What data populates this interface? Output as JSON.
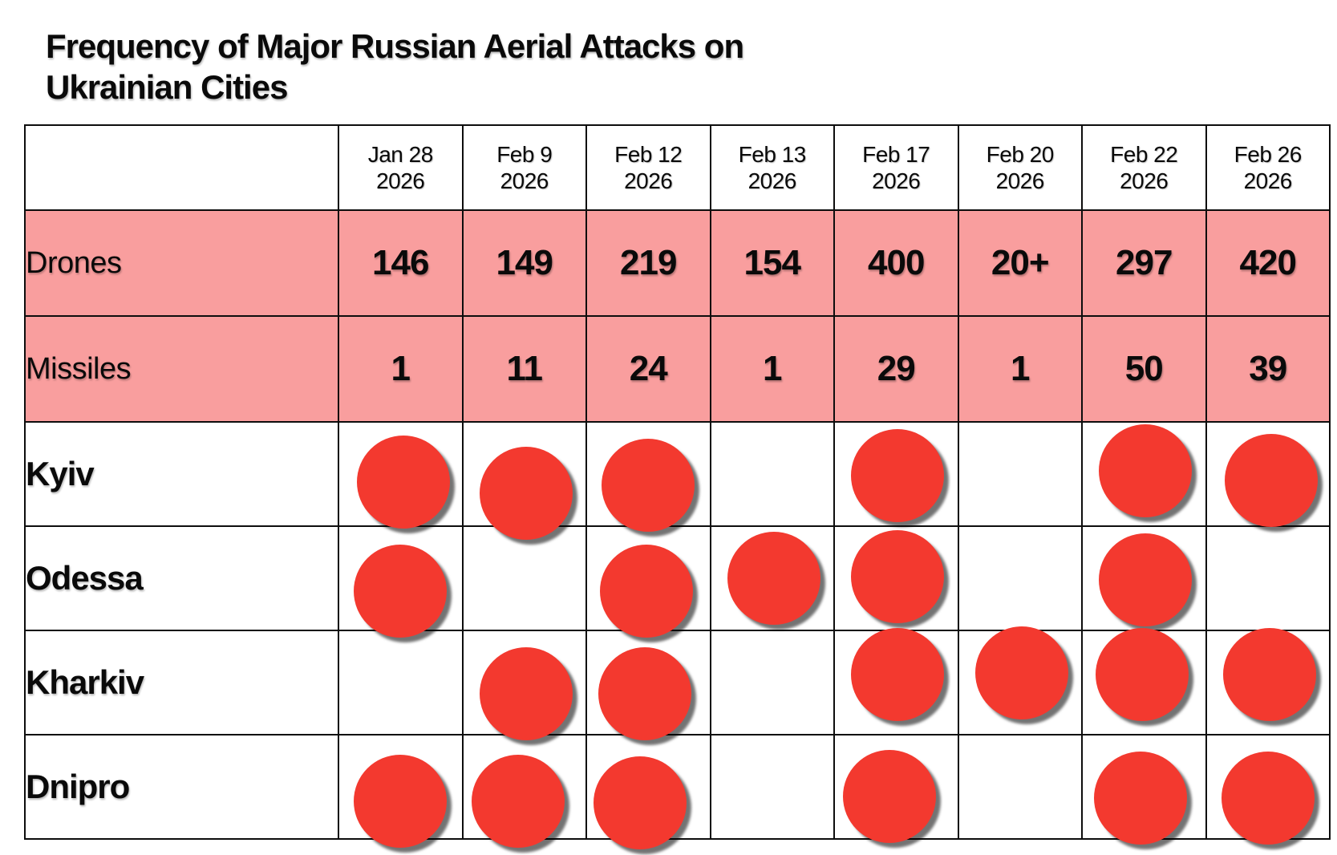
{
  "title": {
    "line1": "Frequency of Major Russian Aerial Attacks on",
    "line2": "Ukrainian Cities"
  },
  "colors": {
    "dot_red": "#F3392F",
    "count_row_pink": "#F99E9E",
    "grid_line": "#0d0d0d",
    "text": "#0a0a0a"
  },
  "chart_data": {
    "type": "table",
    "title": "Frequency of Major Russian Aerial Attacks on Ukrainian Cities",
    "columns": [
      {
        "label": "Jan 28",
        "year": "2026"
      },
      {
        "label": "Feb 9",
        "year": "2026"
      },
      {
        "label": "Feb 12",
        "year": "2026"
      },
      {
        "label": "Feb 13",
        "year": "2026"
      },
      {
        "label": "Feb 17",
        "year": "2026"
      },
      {
        "label": "Feb 20",
        "year": "2026"
      },
      {
        "label": "Feb 22",
        "year": "2026"
      },
      {
        "label": "Feb 26",
        "year": "2026"
      }
    ],
    "count_rows": [
      {
        "label": "Drones",
        "values": [
          "146",
          "149",
          "219",
          "154",
          "400",
          "20+",
          "297",
          "420"
        ]
      },
      {
        "label": "Missiles",
        "values": [
          "1",
          "11",
          "24",
          "1",
          "29",
          "1",
          "50",
          "39"
        ]
      }
    ],
    "city_rows": [
      {
        "label": "Kyiv",
        "attacks": [
          1,
          1,
          1,
          0,
          1,
          0,
          1,
          1
        ]
      },
      {
        "label": "Odessa",
        "attacks": [
          1,
          0,
          1,
          1,
          1,
          0,
          1,
          0
        ]
      },
      {
        "label": "Kharkiv",
        "attacks": [
          0,
          1,
          1,
          0,
          1,
          1,
          1,
          1
        ]
      },
      {
        "label": "Dnipro",
        "attacks": [
          1,
          1,
          1,
          0,
          1,
          0,
          1,
          1
        ]
      }
    ]
  }
}
